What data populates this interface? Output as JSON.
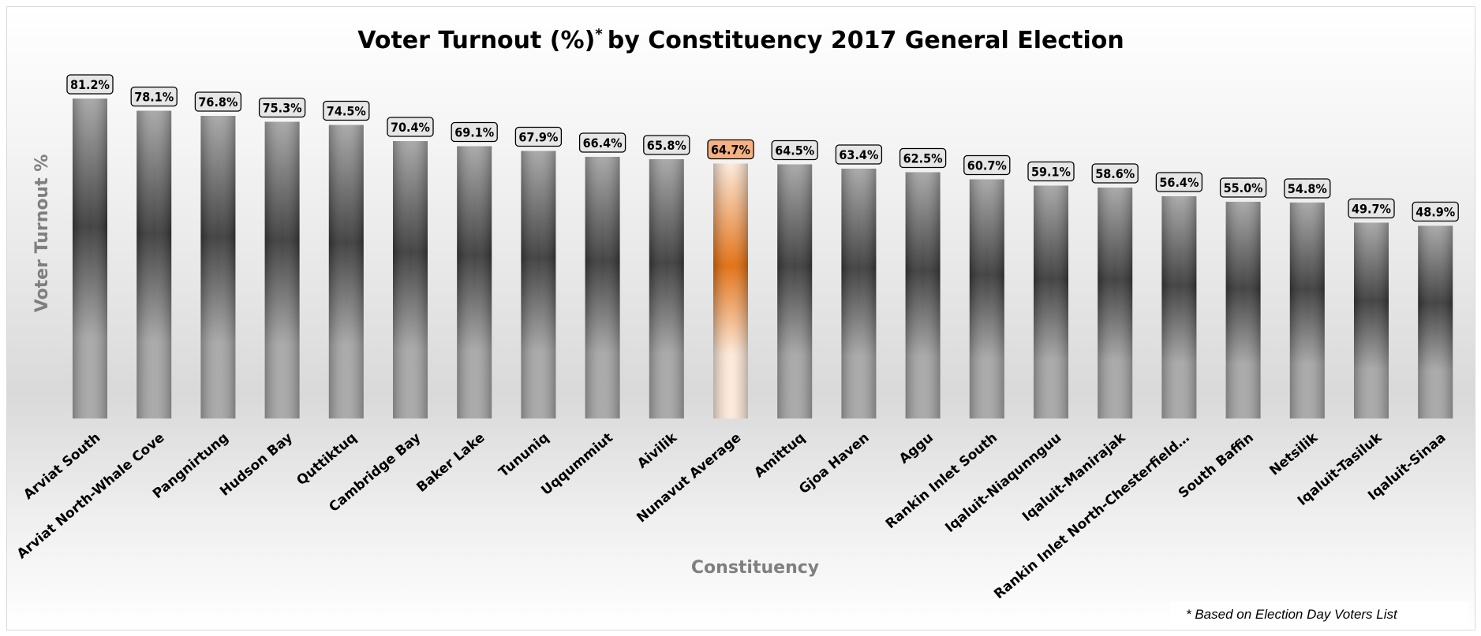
{
  "colors": {
    "bar_dark": "#3a3a3a",
    "bar_light": "#a6a6a6",
    "highlight_dark": "#e36c0a",
    "highlight_light": "#fde9d9",
    "highlight_label_bg": "#f4b183",
    "label_bg": "#e7e6e6",
    "axis_title": "#7f7f7f"
  },
  "chart_data": {
    "type": "bar",
    "title": "Voter Turnout (%)",
    "title_superscript": "*",
    "title_suffix": "by Constituency 2017 General Election",
    "xlabel": "Constituency",
    "ylabel": "Voter Turnout %",
    "ylim": [
      0,
      85
    ],
    "grid": false,
    "highlight_category": "Nunavut Average",
    "categories": [
      "Arviat South",
      "Arviat North-Whale Cove",
      "Pangnirtung",
      "Hudson Bay",
      "Quttiktuq",
      "Cambridge Bay",
      "Baker Lake",
      "Tununiq",
      "Uqqummiut",
      "Aivilik",
      "Nunavut Average",
      "Amittuq",
      "Gjoa Haven",
      "Aggu",
      "Rankin Inlet South",
      "Iqaluit-Niaqunnguu",
      "Iqaluit-Manirajak",
      "Rankin Inlet North-Chesterfield…",
      "South Baffin",
      "Netsilik",
      "Iqaluit-Tasiluk",
      "Iqaluit-Sinaa"
    ],
    "values": [
      81.2,
      78.1,
      76.8,
      75.3,
      74.5,
      70.4,
      69.1,
      67.9,
      66.4,
      65.8,
      64.7,
      64.5,
      63.4,
      62.5,
      60.7,
      59.1,
      58.6,
      56.4,
      55.0,
      54.8,
      49.7,
      48.9
    ],
    "data_labels": [
      "81.2%",
      "78.1%",
      "76.8%",
      "75.3%",
      "74.5%",
      "70.4%",
      "69.1%",
      "67.9%",
      "66.4%",
      "65.8%",
      "64.7%",
      "64.5%",
      "63.4%",
      "62.5%",
      "60.7%",
      "59.1%",
      "58.6%",
      "56.4%",
      "55.0%",
      "54.8%",
      "49.7%",
      "48.9%"
    ],
    "footnote": "* Based on Election Day Voters List"
  }
}
